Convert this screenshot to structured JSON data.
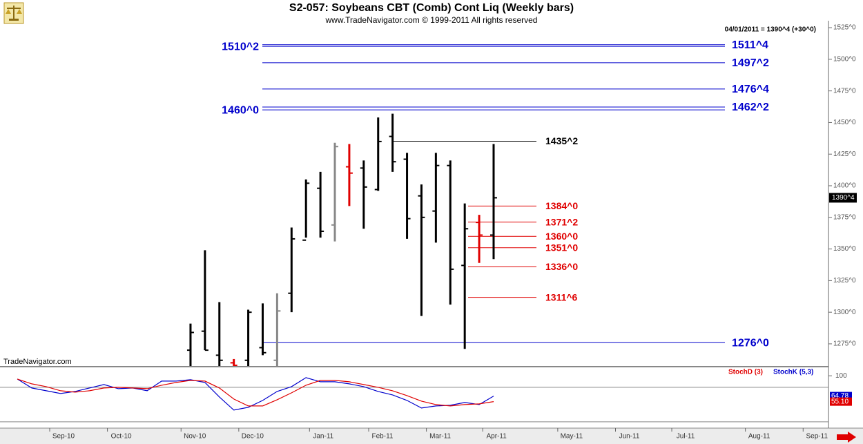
{
  "chart_data": [
    {
      "type": "ohlc",
      "title": "S2-057:  Soybeans CBT (Comb) Cont Liq  (Weekly bars)",
      "subtitle": "www.TradeNavigator.com © 1999-2011 All rights reserved",
      "header_note": "04/01/2011 = 1390^4 (+30^0)",
      "watermark": "TradeNavigator.com",
      "x": [
        13,
        14,
        15,
        16,
        17,
        18,
        19,
        20,
        21,
        22,
        23,
        24,
        25,
        26,
        27,
        28,
        29,
        30,
        31,
        32,
        33,
        34
      ],
      "open": [
        1270,
        1285,
        1266,
        1260,
        1262,
        1272,
        1262,
        1315,
        1357,
        1398,
        1369,
        1415,
        1414,
        1397,
        1439,
        1421,
        1392,
        1380,
        1416,
        1337,
        1371,
        1361
      ],
      "high": [
        1291,
        1349,
        1308,
        1263,
        1302,
        1307,
        1315,
        1367,
        1405,
        1411,
        1434,
        1433,
        1420,
        1454,
        1457,
        1426,
        1401,
        1426,
        1420,
        1386,
        1377,
        1433
      ],
      "low": [
        1250,
        1270,
        1250,
        1250,
        1250,
        1266,
        1250,
        1300,
        1359,
        1359,
        1356,
        1384,
        1366,
        1396,
        1411,
        1358,
        1297,
        1355,
        1306,
        1271,
        1339,
        1342
      ],
      "close": [
        1284,
        1270,
        1262,
        1258,
        1300,
        1268,
        1301,
        1358,
        1402,
        1364,
        1431,
        1410,
        1399,
        1435,
        1419,
        1374,
        1375,
        1416,
        1334,
        1366,
        1361,
        1390.5
      ],
      "bar_colors": [
        "#000000",
        "#000000",
        "#000000",
        "#e00000",
        "#000000",
        "#000000",
        "#888888",
        "#000000",
        "#000000",
        "#000000",
        "#888888",
        "#e00000",
        "#000000",
        "#000000",
        "#000000",
        "#000000",
        "#000000",
        "#000000",
        "#000000",
        "#000000",
        "#e00000",
        "#000000"
      ],
      "last_price_label": "1390^4",
      "xlim": [
        -0.2,
        57.2
      ],
      "ylim": [
        1257.5,
        1530.5
      ],
      "yticks": [
        {
          "value": 1275,
          "label": "1275^0"
        },
        {
          "value": 1300,
          "label": "1300^0"
        },
        {
          "value": 1325,
          "label": "1325^0"
        },
        {
          "value": 1350,
          "label": "1350^0"
        },
        {
          "value": 1375,
          "label": "1375^0"
        },
        {
          "value": 1400,
          "label": "1400^0"
        },
        {
          "value": 1425,
          "label": "1425^0"
        },
        {
          "value": 1450,
          "label": "1450^0"
        },
        {
          "value": 1475,
          "label": "1475^0"
        },
        {
          "value": 1500,
          "label": "1500^0"
        },
        {
          "value": 1525,
          "label": "1525^0"
        }
      ],
      "blue_levels": {
        "color": "#0000cc",
        "values": [
          1511.5,
          1497.25,
          1476.5,
          1462.25,
          1276
        ],
        "labels": [
          "1511^4",
          "1497^2",
          "1476^4",
          "1462^2",
          "1276^0"
        ]
      },
      "left_levels": {
        "color": "#0000cc",
        "values": [
          1510.25,
          1460
        ],
        "labels": [
          "1510^2",
          "1460^0"
        ]
      },
      "black_levels": {
        "color": "#000000",
        "values": [
          1435.25
        ],
        "labels": [
          "1435^2"
        ]
      },
      "red_levels": {
        "color": "#e00000",
        "values": [
          1384,
          1371.25,
          1360,
          1351,
          1336,
          1311.75
        ],
        "labels": [
          "1384^0",
          "1371^2",
          "1360^0",
          "1351^0",
          "1336^0",
          "1311^6"
        ]
      }
    },
    {
      "type": "line",
      "x": [
        1,
        2,
        3,
        4,
        5,
        6,
        7,
        8,
        9,
        10,
        11,
        12,
        13,
        14,
        15,
        16,
        17,
        18,
        19,
        20,
        21,
        22,
        23,
        24,
        25,
        26,
        27,
        28,
        29,
        30,
        31,
        32,
        33,
        34
      ],
      "series": [
        {
          "name": "StochK (5,3)",
          "color": "#0000cc",
          "last_value_label": "64.78",
          "values": [
            94.4,
            78.8,
            74,
            69.2,
            72.8,
            78.8,
            84.8,
            77.6,
            78.8,
            74,
            90.8,
            90.8,
            93.2,
            88.4,
            63.2,
            40.4,
            45.2,
            57.2,
            72.8,
            81.2,
            96.8,
            89.6,
            89.6,
            86,
            81.2,
            72.8,
            66.8,
            57.2,
            44,
            47.6,
            48.8,
            53.6,
            50,
            64.78
          ]
        },
        {
          "name": "StochD (3)",
          "color": "#e00000",
          "last_value_label": "55.10",
          "values": [
            94.4,
            86,
            81.2,
            74,
            71.6,
            74,
            78.8,
            80,
            78.8,
            77.6,
            83.6,
            88.4,
            92,
            90.8,
            78.8,
            59.6,
            47.6,
            47.6,
            58.4,
            70.4,
            83.6,
            92,
            92,
            89.6,
            84.8,
            80,
            74,
            65.6,
            56,
            50,
            47.6,
            50,
            51.2,
            55.1
          ]
        }
      ],
      "levels": [
        80,
        20
      ],
      "xlim": [
        -0.2,
        57.2
      ],
      "ylim": [
        3,
        113.5
      ],
      "yticks": [
        100
      ],
      "xticks": [
        {
          "value": 4.2,
          "label": "Sep-10"
        },
        {
          "value": 8.2,
          "label": "Oct-10"
        },
        {
          "value": 13.3,
          "label": "Nov-10"
        },
        {
          "value": 17.3,
          "label": "Dec-10"
        },
        {
          "value": 22.2,
          "label": "Jan-11"
        },
        {
          "value": 26.3,
          "label": "Feb-11"
        },
        {
          "value": 30.3,
          "label": "Mar-11"
        },
        {
          "value": 34.2,
          "label": "Apr-11"
        },
        {
          "value": 39.4,
          "label": "May-11"
        },
        {
          "value": 43.4,
          "label": "Jun-11"
        },
        {
          "value": 47.3,
          "label": "Jul-11"
        },
        {
          "value": 52.4,
          "label": "Aug-11"
        },
        {
          "value": 56.4,
          "label": "Sep-11"
        }
      ]
    }
  ]
}
